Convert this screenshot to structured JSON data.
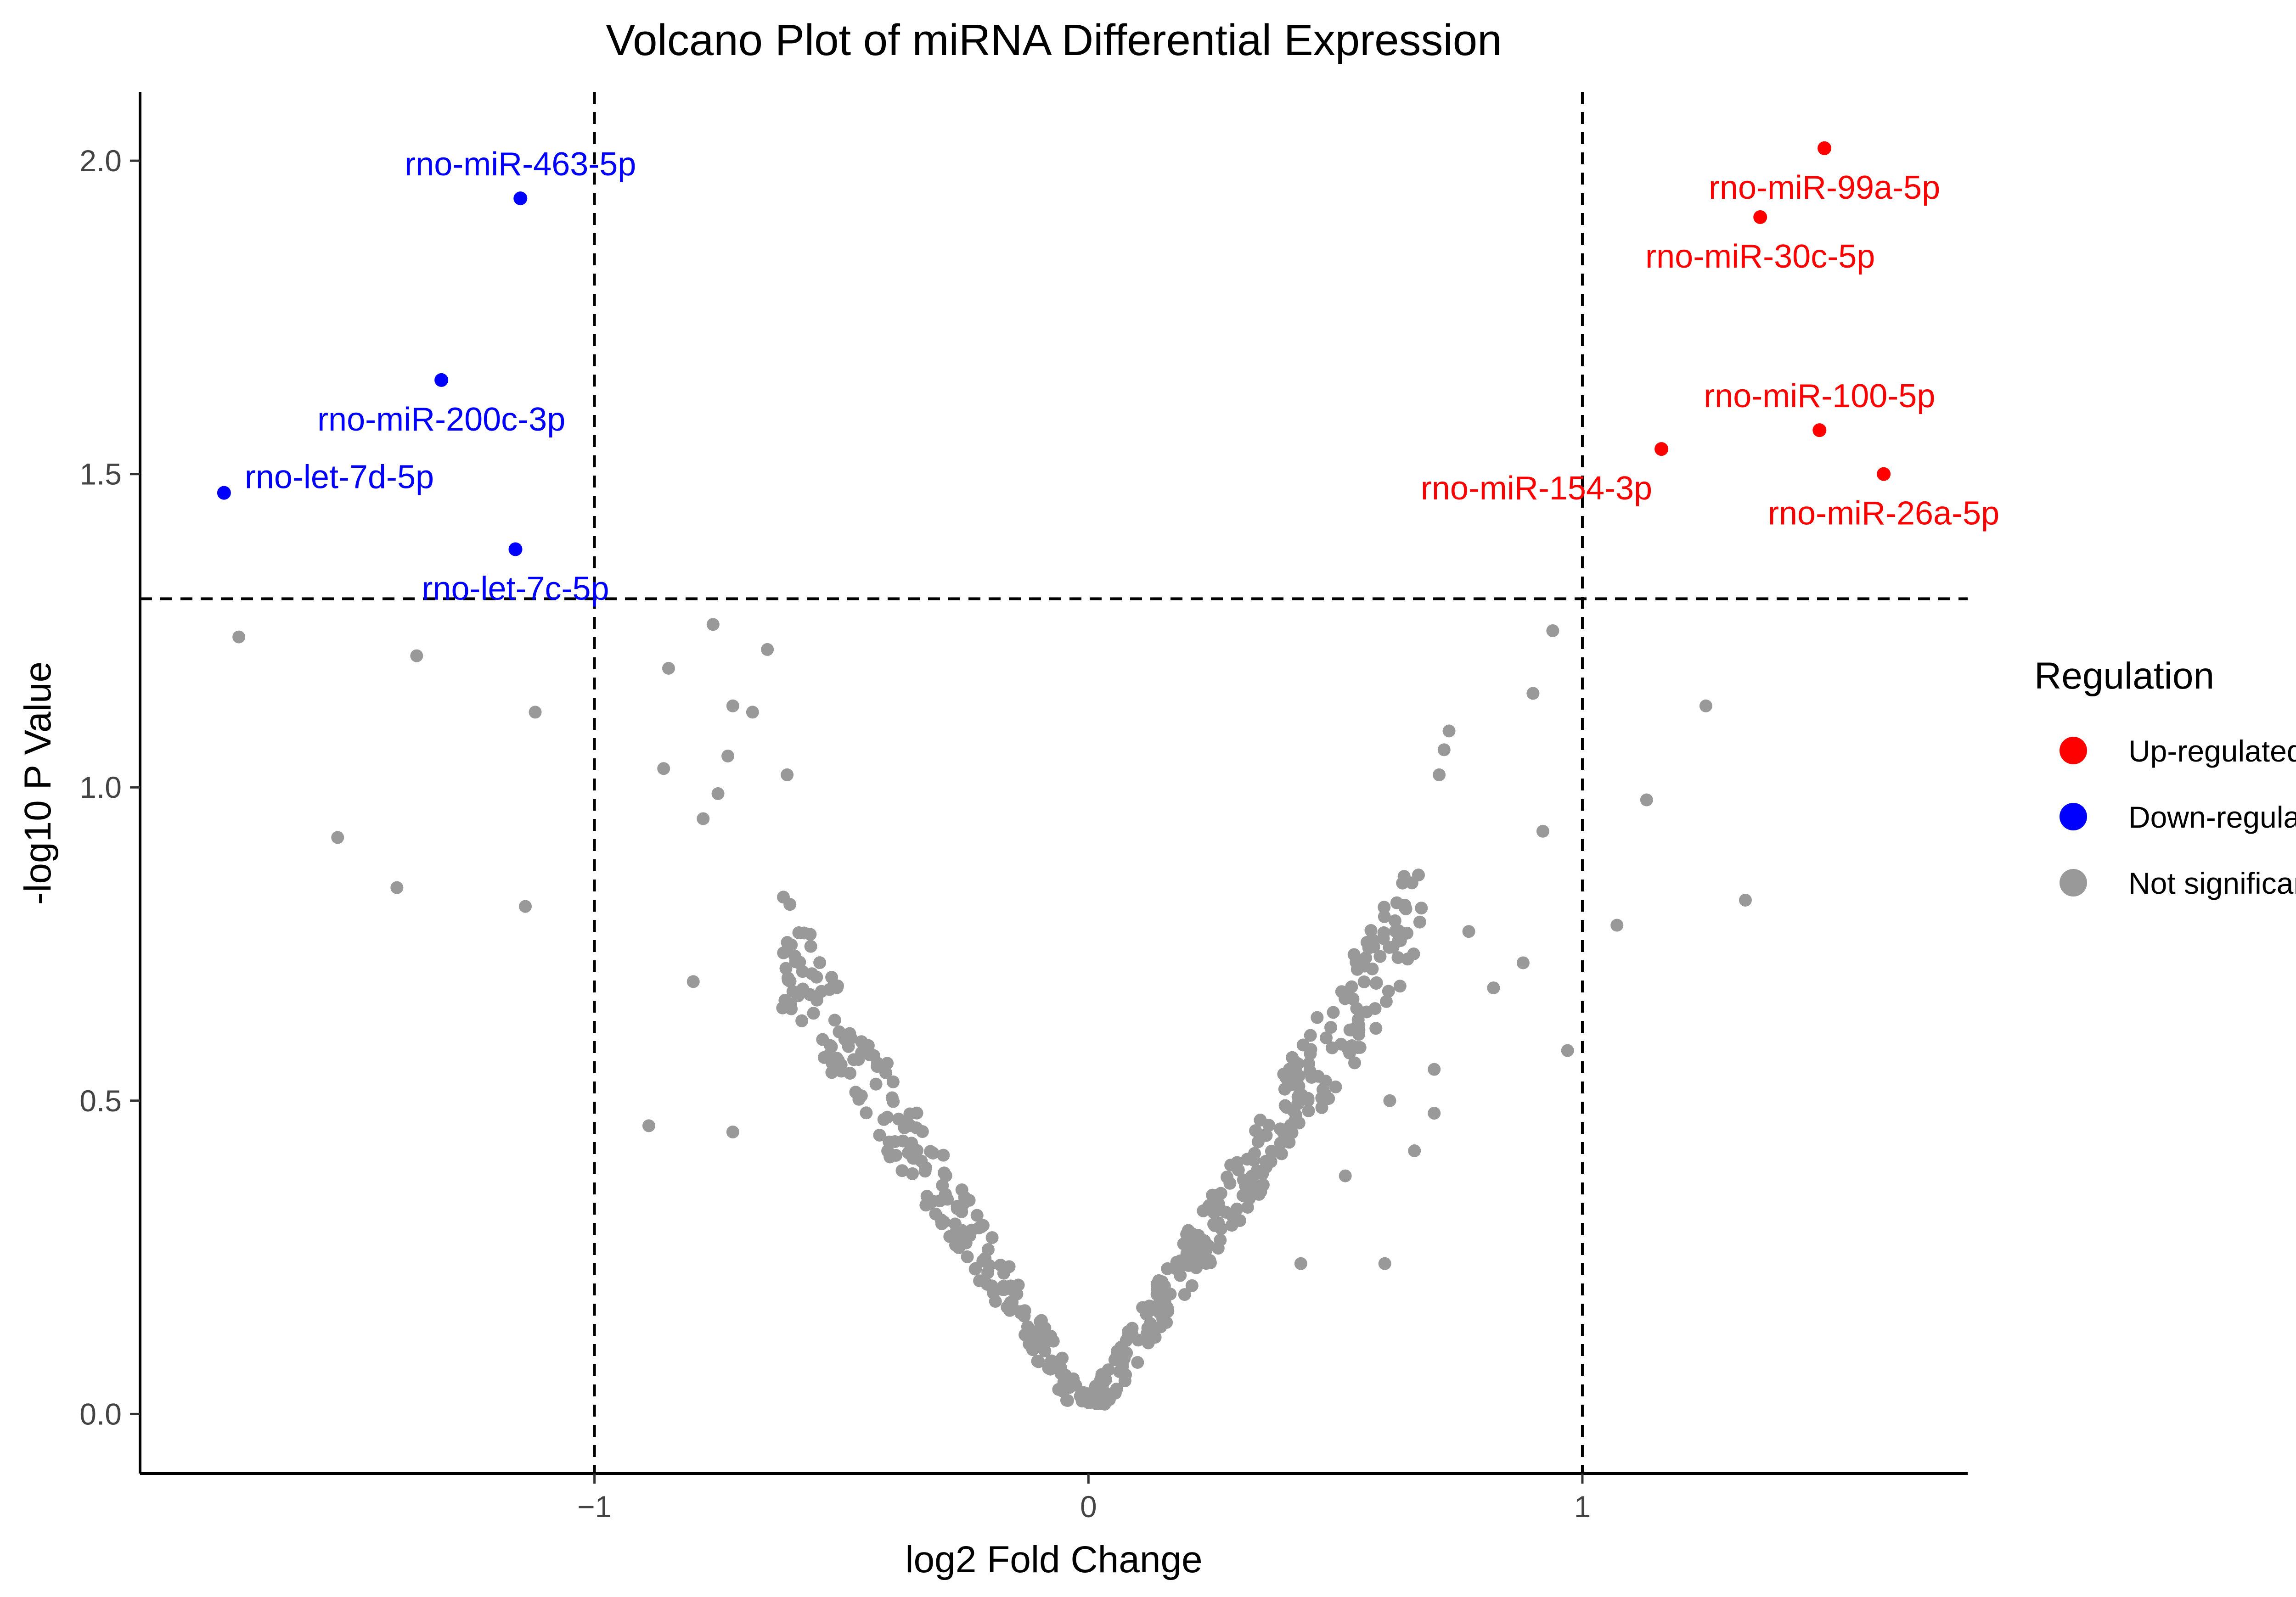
{
  "chart_data": {
    "type": "scatter",
    "title": "Volcano Plot of miRNA Differential Expression",
    "xlabel": "log2 Fold Change",
    "ylabel": "-log10 P Value",
    "xlim": [
      -1.92,
      1.78
    ],
    "ylim": [
      -0.095,
      2.11
    ],
    "x_ticks": [
      {
        "value": -1,
        "label": "−1"
      },
      {
        "value": 0,
        "label": "0"
      },
      {
        "value": 1,
        "label": "1"
      }
    ],
    "y_ticks": [
      {
        "value": 0.0,
        "label": "0.0"
      },
      {
        "value": 0.5,
        "label": "0.5"
      },
      {
        "value": 1.0,
        "label": "1.0"
      },
      {
        "value": 1.5,
        "label": "1.5"
      },
      {
        "value": 2.0,
        "label": "2.0"
      }
    ],
    "thresholds": {
      "fold_change": [
        -1,
        1
      ],
      "p_value_log10": 1.301
    },
    "colors": {
      "up": "#ff0000",
      "down": "#0000ff",
      "ns": "#999999",
      "axis": "#000000"
    },
    "legend": {
      "title": "Regulation",
      "position": "right",
      "entries": [
        {
          "label": "Up-regulated",
          "color": "#ff0000"
        },
        {
          "label": "Down-regulated",
          "color": "#0000ff"
        },
        {
          "label": "Not significant",
          "color": "#999999"
        }
      ]
    },
    "labeled_points": [
      {
        "name": "rno-miR-463-5p",
        "x": -1.15,
        "y": 1.94,
        "group": "down",
        "label_pos": "above"
      },
      {
        "name": "rno-miR-200c-3p",
        "x": -1.31,
        "y": 1.65,
        "group": "down",
        "label_pos": "below"
      },
      {
        "name": "rno-let-7d-5p",
        "x": -1.75,
        "y": 1.47,
        "group": "down",
        "label_pos": "right"
      },
      {
        "name": "rno-let-7c-5p",
        "x": -1.16,
        "y": 1.38,
        "group": "down",
        "label_pos": "below"
      },
      {
        "name": "rno-miR-99a-5p",
        "x": 1.49,
        "y": 2.02,
        "group": "up",
        "label_pos": "below"
      },
      {
        "name": "rno-miR-30c-5p",
        "x": 1.36,
        "y": 1.91,
        "group": "up",
        "label_pos": "below"
      },
      {
        "name": "rno-miR-100-5p",
        "x": 1.48,
        "y": 1.57,
        "group": "up",
        "label_pos": "above"
      },
      {
        "name": "rno-miR-154-3p",
        "x": 1.16,
        "y": 1.54,
        "group": "up",
        "label_pos": "below-left"
      },
      {
        "name": "rno-miR-26a-5p",
        "x": 1.61,
        "y": 1.5,
        "group": "up",
        "label_pos": "below"
      }
    ],
    "outlier_points": [
      {
        "x": -1.72,
        "y": 1.24
      },
      {
        "x": -1.36,
        "y": 1.21
      },
      {
        "x": -1.12,
        "y": 1.12
      },
      {
        "x": -1.52,
        "y": 0.92
      },
      {
        "x": -1.4,
        "y": 0.84
      },
      {
        "x": -1.14,
        "y": 0.81
      },
      {
        "x": -0.89,
        "y": 0.46
      },
      {
        "x": -0.72,
        "y": 0.45
      },
      {
        "x": -0.8,
        "y": 0.69
      },
      {
        "x": -0.76,
        "y": 1.26
      },
      {
        "x": -0.85,
        "y": 1.19
      },
      {
        "x": -0.65,
        "y": 1.22
      },
      {
        "x": -0.72,
        "y": 1.13
      },
      {
        "x": -0.68,
        "y": 1.12
      },
      {
        "x": -0.86,
        "y": 1.03
      },
      {
        "x": -0.73,
        "y": 1.05
      },
      {
        "x": -0.61,
        "y": 1.02
      },
      {
        "x": -0.78,
        "y": 0.95
      },
      {
        "x": -0.75,
        "y": 0.99
      },
      {
        "x": 0.94,
        "y": 1.25
      },
      {
        "x": 0.9,
        "y": 1.15
      },
      {
        "x": 1.25,
        "y": 1.13
      },
      {
        "x": 1.13,
        "y": 0.98
      },
      {
        "x": 0.92,
        "y": 0.93
      },
      {
        "x": 1.33,
        "y": 0.82
      },
      {
        "x": 1.07,
        "y": 0.78
      },
      {
        "x": 0.97,
        "y": 0.58
      },
      {
        "x": 0.88,
        "y": 0.72
      },
      {
        "x": 0.82,
        "y": 0.68
      },
      {
        "x": 0.77,
        "y": 0.77
      },
      {
        "x": 0.73,
        "y": 1.09
      },
      {
        "x": 0.72,
        "y": 1.06
      },
      {
        "x": 0.71,
        "y": 1.02
      },
      {
        "x": 0.6,
        "y": 0.24
      },
      {
        "x": 0.43,
        "y": 0.24
      },
      {
        "x": 0.52,
        "y": 0.38
      },
      {
        "x": 0.61,
        "y": 0.5
      },
      {
        "x": 0.66,
        "y": 0.42
      },
      {
        "x": 0.7,
        "y": 0.55
      },
      {
        "x": 0.7,
        "y": 0.48
      }
    ],
    "ns_curve": {
      "count": 520,
      "x_range": [
        -0.62,
        0.68
      ],
      "slope": 1.2,
      "jitter": 0.07
    }
  }
}
